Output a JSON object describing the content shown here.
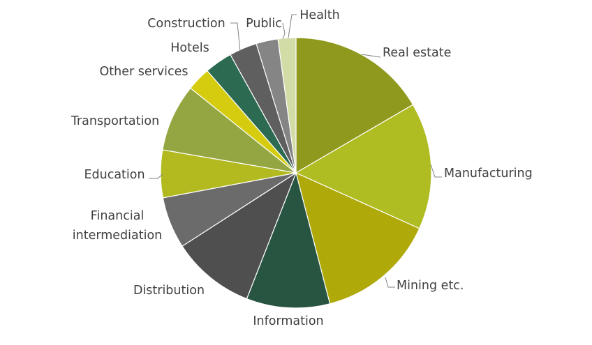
{
  "chart_data": {
    "type": "pie",
    "title": "",
    "legend": "none",
    "start_angle_deg": 0,
    "direction": "clockwise",
    "slices": [
      {
        "label": "Real estate",
        "value": 17.5,
        "color": "#8E991D"
      },
      {
        "label": "Manufacturing",
        "value": 16.0,
        "color": "#AFBD22"
      },
      {
        "label": "Mining etc.",
        "value": 15.0,
        "color": "#AFA90A"
      },
      {
        "label": "Information",
        "value": 10.5,
        "color": "#285442"
      },
      {
        "label": "Distribution",
        "value": 10.5,
        "color": "#4F4F4F"
      },
      {
        "label": "Financial intermediation",
        "value": 6.5,
        "color": "#6B6B6B"
      },
      {
        "label": "Education",
        "value": 6.0,
        "color": "#B3BA1F"
      },
      {
        "label": "Transportation",
        "value": 8.5,
        "color": "#94A642"
      },
      {
        "label": "Other services",
        "value": 3.0,
        "color": "#D5CC0F"
      },
      {
        "label": "Hotels",
        "value": 3.5,
        "color": "#2D6A52"
      },
      {
        "label": "Construction",
        "value": 3.5,
        "color": "#5F5F5F"
      },
      {
        "label": "Public",
        "value": 2.75,
        "color": "#858585"
      },
      {
        "label": "Health",
        "value": 2.25,
        "color": "#D2DCA6"
      }
    ]
  }
}
